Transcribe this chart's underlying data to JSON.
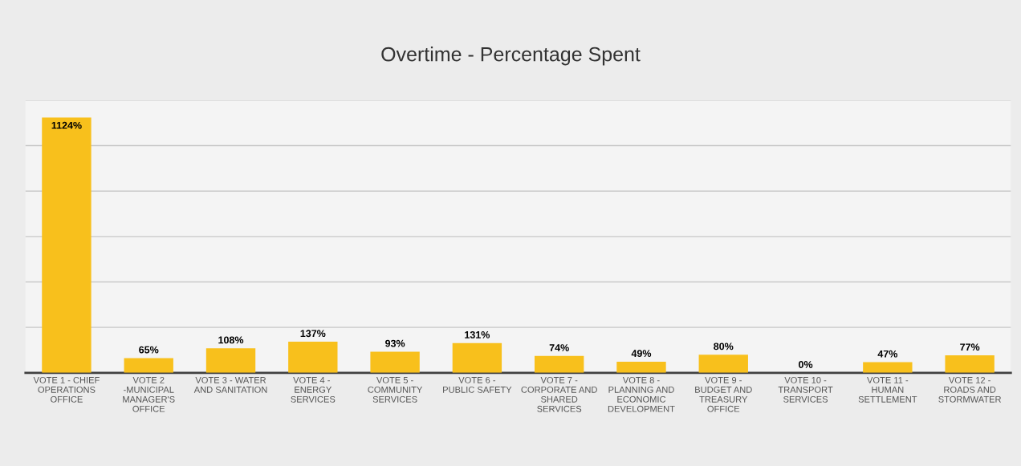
{
  "chart_data": {
    "type": "bar",
    "title": "Overtime - Percentage Spent",
    "categories": [
      "VOTE 1 - CHIEF OPERATIONS OFFICE",
      "VOTE 2 -MUNICIPAL MANAGER'S OFFICE",
      "VOTE 3 - WATER AND SANITATION",
      "VOTE 4 -  ENERGY SERVICES",
      "VOTE 5 - COMMUNITY SERVICES",
      "VOTE 6 - PUBLIC SAFETY",
      "VOTE 7 - CORPORATE AND SHARED SERVICES",
      "VOTE 8 - PLANNING AND ECONOMIC DEVELOPMENT",
      "VOTE 9 - BUDGET AND TREASURY OFFICE",
      "VOTE 10 - TRANSPORT SERVICES",
      "VOTE 11 - HUMAN SETTLEMENT",
      "VOTE 12 - ROADS AND STORMWATER"
    ],
    "values": [
      1124,
      65,
      108,
      137,
      93,
      131,
      74,
      49,
      80,
      0,
      47,
      77
    ],
    "value_labels": [
      "1124%",
      "65%",
      "108%",
      "137%",
      "93%",
      "131%",
      "74%",
      "49%",
      "80%",
      "0%",
      "47%",
      "77%"
    ],
    "color": "#f8c01c",
    "ylim": [
      0,
      1200
    ],
    "yticks": [
      {
        "value": 0,
        "label": null
      },
      {
        "value": 200,
        "label": null
      },
      {
        "value": 400,
        "label": null
      },
      {
        "value": 600,
        "label": null
      },
      {
        "value": 800,
        "label": null
      },
      {
        "value": 1000,
        "label": null
      },
      {
        "value": 1200,
        "label": null
      }
    ],
    "tick_labels": "x",
    "grid": "y",
    "legend": false
  }
}
